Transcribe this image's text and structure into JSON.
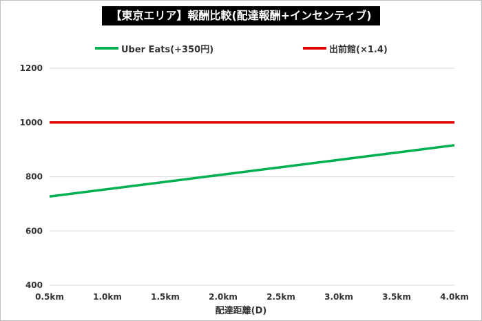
{
  "chart_data": {
    "type": "line",
    "title": "【東京エリア】報酬比較(配達報酬+インセンティブ)",
    "xlabel": "配達距離(D)",
    "ylabel": "",
    "x": [
      0.5,
      1.0,
      1.5,
      2.0,
      2.5,
      3.0,
      3.5,
      4.0
    ],
    "x_tick_labels": [
      "0.5km",
      "1.0km",
      "1.5km",
      "2.0km",
      "2.5km",
      "3.0km",
      "3.5km",
      "4.0km"
    ],
    "ylim": [
      400,
      1200
    ],
    "y_ticks": [
      400,
      600,
      800,
      1000,
      1200
    ],
    "grid": true,
    "legend_position": "top",
    "series": [
      {
        "name": "Uber Eats(+350円)",
        "color": "#00b050",
        "values": [
          727,
          754,
          781,
          808,
          835,
          862,
          889,
          916
        ]
      },
      {
        "name": "出前館(×1.4)",
        "color": "#e00000",
        "values": [
          1000,
          1000,
          1000,
          1000,
          1000,
          1000,
          1000,
          1000
        ]
      }
    ]
  }
}
